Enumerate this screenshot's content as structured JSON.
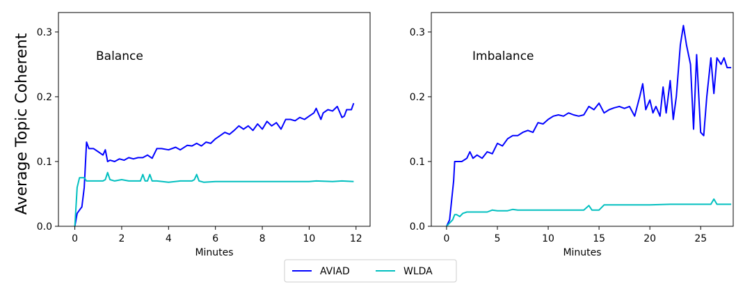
{
  "figure": {
    "ylabel": "Average Topic Coherent",
    "legend": {
      "placement": "bottom-center",
      "entries": [
        {
          "label": "AVIAD",
          "color": "#0000ff"
        },
        {
          "label": "WLDA",
          "color": "#00bfbf"
        }
      ]
    }
  },
  "chart_data": [
    {
      "type": "line",
      "annotation": "Balance",
      "xlabel": "Minutes",
      "xlim": [
        -0.7,
        12.6
      ],
      "ylim": [
        0,
        0.33
      ],
      "xticks": [
        0,
        2,
        4,
        6,
        8,
        10,
        12
      ],
      "xtick_labels": [
        "0",
        "2",
        "4",
        "6",
        "8",
        "10",
        "12"
      ],
      "yticks": [
        0.0,
        0.1,
        0.2,
        0.3
      ],
      "ytick_labels": [
        "0.0",
        "0.1",
        "0.2",
        "0.3"
      ],
      "grid": false,
      "series": [
        {
          "name": "AVIAD",
          "color": "#0000ff",
          "x": [
            0,
            0.1,
            0.2,
            0.3,
            0.4,
            0.5,
            0.6,
            0.7,
            0.8,
            1.0,
            1.2,
            1.3,
            1.4,
            1.5,
            1.7,
            1.9,
            2.1,
            2.3,
            2.5,
            2.7,
            2.9,
            3.1,
            3.3,
            3.5,
            3.7,
            4.0,
            4.3,
            4.5,
            4.8,
            5.0,
            5.2,
            5.4,
            5.6,
            5.8,
            6.0,
            6.2,
            6.4,
            6.6,
            6.8,
            7.0,
            7.2,
            7.4,
            7.6,
            7.8,
            8.0,
            8.2,
            8.4,
            8.6,
            8.8,
            9.0,
            9.2,
            9.4,
            9.6,
            9.8,
            10.0,
            10.2,
            10.3,
            10.5,
            10.6,
            10.8,
            11.0,
            11.2,
            11.4,
            11.5,
            11.6,
            11.8,
            11.9
          ],
          "y": [
            0.0,
            0.02,
            0.025,
            0.03,
            0.06,
            0.13,
            0.12,
            0.12,
            0.12,
            0.115,
            0.11,
            0.118,
            0.1,
            0.102,
            0.1,
            0.104,
            0.102,
            0.106,
            0.104,
            0.106,
            0.106,
            0.11,
            0.105,
            0.12,
            0.12,
            0.118,
            0.122,
            0.118,
            0.125,
            0.124,
            0.128,
            0.124,
            0.13,
            0.128,
            0.135,
            0.14,
            0.145,
            0.142,
            0.148,
            0.155,
            0.15,
            0.155,
            0.148,
            0.158,
            0.15,
            0.162,
            0.155,
            0.16,
            0.15,
            0.165,
            0.165,
            0.163,
            0.168,
            0.165,
            0.17,
            0.175,
            0.182,
            0.165,
            0.175,
            0.18,
            0.178,
            0.185,
            0.168,
            0.17,
            0.18,
            0.18,
            0.19
          ]
        },
        {
          "name": "WLDA",
          "color": "#00bfbf",
          "x": [
            0,
            0.1,
            0.2,
            0.3,
            0.4,
            0.5,
            0.6,
            0.8,
            1.0,
            1.2,
            1.3,
            1.4,
            1.5,
            1.7,
            2.0,
            2.3,
            2.6,
            2.8,
            2.9,
            3.0,
            3.1,
            3.2,
            3.3,
            3.5,
            4.0,
            4.5,
            5.0,
            5.1,
            5.2,
            5.3,
            5.5,
            6.0,
            7.0,
            8.0,
            9.0,
            10.0,
            10.3,
            11.0,
            11.4,
            11.9
          ],
          "y": [
            0.0,
            0.06,
            0.075,
            0.075,
            0.075,
            0.07,
            0.07,
            0.07,
            0.07,
            0.07,
            0.072,
            0.083,
            0.072,
            0.07,
            0.072,
            0.07,
            0.07,
            0.07,
            0.08,
            0.07,
            0.07,
            0.08,
            0.07,
            0.07,
            0.068,
            0.07,
            0.07,
            0.072,
            0.08,
            0.07,
            0.068,
            0.069,
            0.069,
            0.069,
            0.069,
            0.069,
            0.07,
            0.069,
            0.07,
            0.069
          ]
        }
      ]
    },
    {
      "type": "line",
      "annotation": "Imbalance",
      "xlabel": "Minutes",
      "xlim": [
        -1.5,
        28.2
      ],
      "ylim": [
        0,
        0.33
      ],
      "xticks": [
        0,
        5,
        10,
        15,
        20,
        25
      ],
      "xtick_labels": [
        "0",
        "5",
        "10",
        "15",
        "20",
        "25"
      ],
      "yticks": [
        0.0,
        0.1,
        0.2,
        0.3
      ],
      "ytick_labels": [
        "0.0",
        "0.1",
        "0.2",
        "0.3"
      ],
      "grid": false,
      "series": [
        {
          "name": "AVIAD",
          "color": "#0000ff",
          "x": [
            0,
            0.3,
            0.5,
            0.7,
            0.8,
            1.5,
            2.0,
            2.3,
            2.6,
            3.0,
            3.5,
            4.0,
            4.5,
            5.0,
            5.5,
            6.0,
            6.5,
            7.0,
            7.5,
            8.0,
            8.5,
            9.0,
            9.5,
            10.0,
            10.5,
            11.0,
            11.5,
            12.0,
            12.5,
            13.0,
            13.5,
            14.0,
            14.5,
            15.0,
            15.5,
            16.0,
            16.5,
            17.0,
            17.5,
            18.0,
            18.5,
            19.0,
            19.3,
            19.6,
            20.0,
            20.3,
            20.6,
            21.0,
            21.3,
            21.6,
            22.0,
            22.3,
            22.6,
            23.0,
            23.3,
            23.6,
            24.0,
            24.3,
            24.6,
            25.0,
            25.3,
            25.6,
            26.0,
            26.3,
            26.6,
            27.0,
            27.3,
            27.6,
            28.0
          ],
          "y": [
            0.0,
            0.01,
            0.04,
            0.07,
            0.1,
            0.1,
            0.105,
            0.115,
            0.105,
            0.11,
            0.105,
            0.115,
            0.112,
            0.128,
            0.124,
            0.135,
            0.14,
            0.14,
            0.145,
            0.148,
            0.145,
            0.16,
            0.158,
            0.165,
            0.17,
            0.172,
            0.17,
            0.175,
            0.172,
            0.17,
            0.172,
            0.185,
            0.18,
            0.19,
            0.175,
            0.18,
            0.183,
            0.185,
            0.182,
            0.185,
            0.17,
            0.2,
            0.22,
            0.18,
            0.195,
            0.175,
            0.185,
            0.17,
            0.215,
            0.175,
            0.225,
            0.165,
            0.2,
            0.28,
            0.31,
            0.28,
            0.25,
            0.15,
            0.265,
            0.145,
            0.14,
            0.2,
            0.26,
            0.205,
            0.26,
            0.25,
            0.26,
            0.245,
            0.245
          ]
        },
        {
          "name": "WLDA",
          "color": "#00bfbf",
          "x": [
            0,
            0.3,
            0.6,
            0.8,
            1.0,
            1.3,
            1.6,
            2.0,
            3.0,
            4.0,
            4.5,
            5.0,
            6.0,
            6.5,
            7.0,
            8.0,
            10.0,
            12.0,
            13.5,
            14.0,
            14.3,
            15.0,
            15.5,
            16.0,
            18.0,
            20.0,
            22.0,
            24.0,
            26.0,
            26.3,
            26.6,
            28.0
          ],
          "y": [
            0.0,
            0.005,
            0.01,
            0.018,
            0.018,
            0.015,
            0.02,
            0.022,
            0.022,
            0.022,
            0.025,
            0.024,
            0.024,
            0.026,
            0.025,
            0.025,
            0.025,
            0.025,
            0.025,
            0.032,
            0.025,
            0.025,
            0.033,
            0.033,
            0.033,
            0.033,
            0.034,
            0.034,
            0.034,
            0.042,
            0.034,
            0.034
          ]
        }
      ]
    }
  ]
}
